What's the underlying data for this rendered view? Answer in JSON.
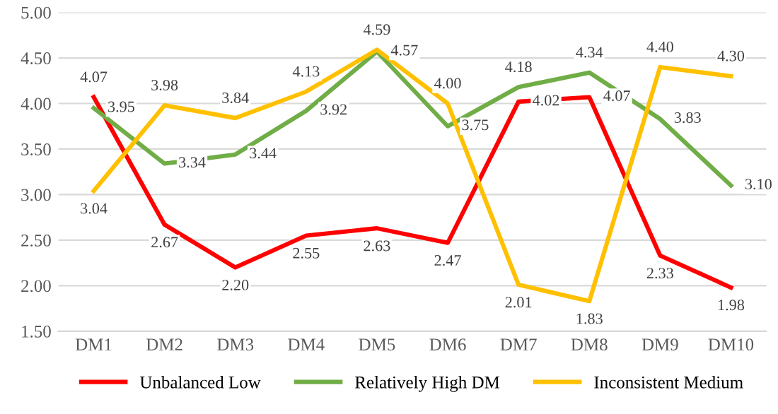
{
  "chart_data": {
    "type": "line",
    "categories": [
      "DM1",
      "DM2",
      "DM3",
      "DM4",
      "DM5",
      "DM6",
      "DM7",
      "DM8",
      "DM9",
      "DM10"
    ],
    "series": [
      {
        "name": "Unbalanced Low",
        "color": "#ff0000",
        "values": [
          4.07,
          2.67,
          2.2,
          2.55,
          2.63,
          2.47,
          4.02,
          4.07,
          2.33,
          1.98
        ],
        "value_labels": [
          "4.07",
          "2.67",
          "2.20",
          "2.55",
          "2.63",
          "2.47",
          "4.02",
          "4.07",
          "2.33",
          "1.98"
        ]
      },
      {
        "name": "Relatively High DM",
        "color": "#70ad47",
        "values": [
          3.95,
          3.34,
          3.44,
          3.92,
          4.57,
          3.75,
          4.18,
          4.34,
          3.83,
          3.1
        ],
        "value_labels": [
          "3.95",
          "3.34",
          "3.44",
          "3.92",
          "4.57",
          "3.75",
          "4.18",
          "4.34",
          "3.83",
          "3.10"
        ]
      },
      {
        "name": "Inconsistent Medium",
        "color": "#ffc000",
        "values": [
          3.04,
          3.98,
          3.84,
          4.13,
          4.59,
          4.0,
          2.01,
          1.83,
          4.4,
          4.3
        ],
        "value_labels": [
          "3.04",
          "3.98",
          "3.84",
          "4.13",
          "4.59",
          "4.00",
          "2.01",
          "1.83",
          "4.40",
          "4.30"
        ]
      }
    ],
    "ylim": [
      1.5,
      5.0
    ],
    "yticks": [
      {
        "value": 1.5,
        "label": "1.50"
      },
      {
        "value": 2.0,
        "label": "2.00"
      },
      {
        "value": 2.5,
        "label": "2.50"
      },
      {
        "value": 3.0,
        "label": "3.00"
      },
      {
        "value": 3.5,
        "label": "3.50"
      },
      {
        "value": 4.0,
        "label": "4.00"
      },
      {
        "value": 4.5,
        "label": "4.50"
      },
      {
        "value": 5.0,
        "label": "5.00"
      }
    ],
    "grid": "y",
    "legend": "bottom",
    "marker": "none",
    "line_style": "solid"
  }
}
